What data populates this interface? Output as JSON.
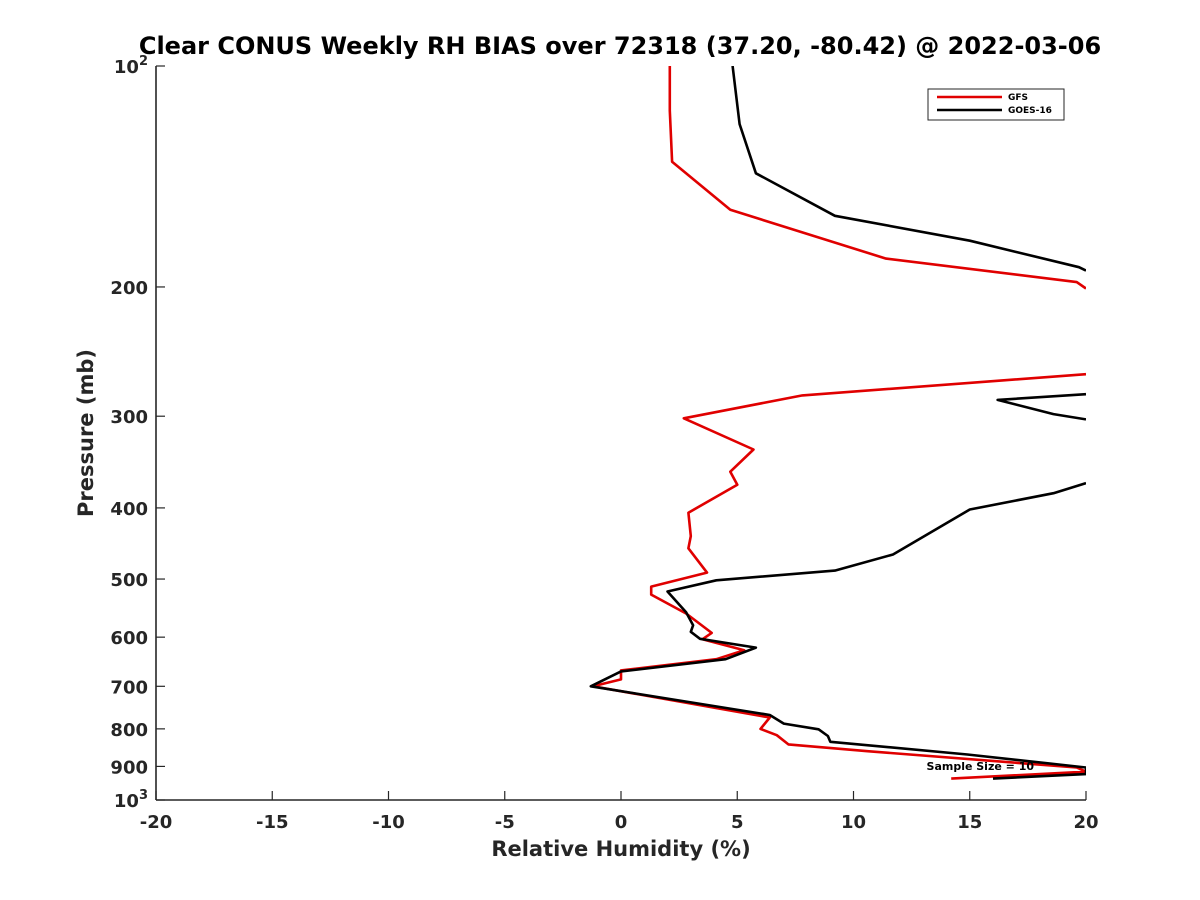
{
  "chart_data": {
    "type": "line",
    "title": "Clear CONUS Weekly RH BIAS over 72318 (37.20, -80.42) @ 2022-03-06",
    "xlabel": "Relative Humidity (%)",
    "ylabel": "Pressure (mb)",
    "xlim": [
      -20,
      20
    ],
    "ylim": [
      1000,
      100
    ],
    "yscale": "log",
    "x_ticks": [
      -20,
      -15,
      -10,
      -5,
      0,
      5,
      10,
      15,
      20
    ],
    "x_tick_labels": [
      "-20",
      "-15",
      "-10",
      "-5",
      "0",
      "5",
      "10",
      "15",
      "20"
    ],
    "y_ticks": [
      {
        "value": 100,
        "base": "10",
        "exp": "2"
      },
      {
        "value": 200,
        "label": "200"
      },
      {
        "value": 300,
        "label": "300"
      },
      {
        "value": 400,
        "label": "400"
      },
      {
        "value": 500,
        "label": "500"
      },
      {
        "value": 600,
        "label": "600"
      },
      {
        "value": 700,
        "label": "700"
      },
      {
        "value": 800,
        "label": "800"
      },
      {
        "value": 900,
        "label": "900"
      },
      {
        "value": 1000,
        "base": "10",
        "exp": "3"
      }
    ],
    "grid": false,
    "legend_position": "top-right",
    "series": [
      {
        "name": "GFS",
        "color": "#e00000",
        "points": [
          [
            2.1,
            100
          ],
          [
            2.1,
            115
          ],
          [
            2.2,
            135
          ],
          [
            4.7,
            157
          ],
          [
            11.4,
            183
          ],
          [
            19.6,
            197
          ],
          [
            20,
            201
          ],
          [
            null,
            null
          ],
          [
            20,
            263
          ],
          [
            7.8,
            281
          ],
          [
            2.7,
            302
          ],
          [
            5.7,
            333
          ],
          [
            4.7,
            357
          ],
          [
            5.0,
            372
          ],
          [
            2.9,
            406
          ],
          [
            3.0,
            437
          ],
          [
            2.9,
            454
          ],
          [
            3.7,
            490
          ],
          [
            1.3,
            512
          ],
          [
            1.3,
            525
          ],
          [
            2.8,
            557
          ],
          [
            3.9,
            592
          ],
          [
            3.5,
            604
          ],
          [
            5.3,
            625
          ],
          [
            4.1,
            643
          ],
          [
            0.0,
            666
          ],
          [
            0.0,
            685
          ],
          [
            -1.2,
            700
          ],
          [
            6.4,
            772
          ],
          [
            6.0,
            800
          ],
          [
            6.7,
            816
          ],
          [
            7.2,
            840
          ],
          [
            10.6,
            858
          ],
          [
            19.6,
            903
          ],
          [
            20,
            915
          ],
          [
            14.2,
            935
          ]
        ]
      },
      {
        "name": "GOES-16",
        "color": "#000000",
        "points": [
          [
            4.8,
            100
          ],
          [
            5.1,
            120
          ],
          [
            5.8,
            140
          ],
          [
            9.2,
            160
          ],
          [
            15.0,
            173
          ],
          [
            19.7,
            188
          ],
          [
            20,
            190
          ],
          [
            null,
            null
          ],
          [
            20,
            280
          ],
          [
            16.2,
            285
          ],
          [
            18.6,
            298
          ],
          [
            20,
            303
          ],
          [
            null,
            null
          ],
          [
            20,
            370
          ],
          [
            18.6,
            382
          ],
          [
            15.0,
            402
          ],
          [
            11.7,
            463
          ],
          [
            9.2,
            487
          ],
          [
            4.1,
            502
          ],
          [
            2.0,
            520
          ],
          [
            2.8,
            555
          ],
          [
            3.1,
            578
          ],
          [
            3.0,
            590
          ],
          [
            3.4,
            603
          ],
          [
            5.8,
            620
          ],
          [
            4.5,
            643
          ],
          [
            0.0,
            668
          ],
          [
            -1.3,
            700
          ],
          [
            6.4,
            766
          ],
          [
            7.0,
            787
          ],
          [
            8.5,
            801
          ],
          [
            8.9,
            818
          ],
          [
            9.0,
            833
          ],
          [
            14.9,
            867
          ],
          [
            20,
            903
          ],
          [
            20,
            922
          ],
          [
            16.0,
            935
          ]
        ]
      }
    ],
    "annotation": "Sample Size = 10"
  }
}
